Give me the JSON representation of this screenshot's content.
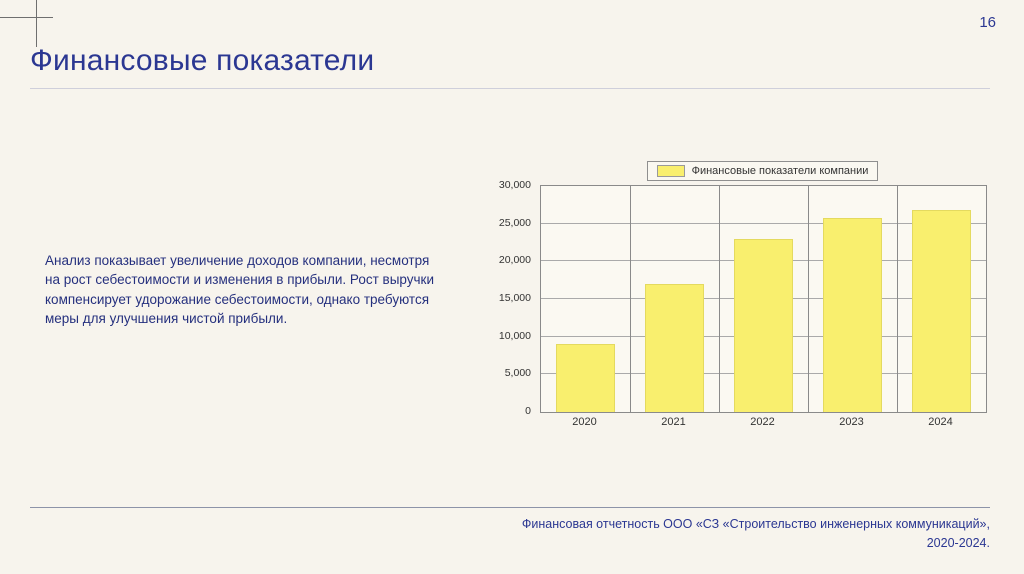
{
  "page_number": "16",
  "title": "Финансовые показатели",
  "body_text": "Анализ показывает увеличение доходов компании, несмотря на рост себестоимости и изменения в прибыли. Рост выручки компенсирует удорожание себестоимости, однако требуются меры для улучшения чистой прибыли.",
  "footer": {
    "line1": "Финансовая отчетность ООО «СЗ «Строительство инженерных коммуникаций»,",
    "line2": "2020-2024."
  },
  "colors": {
    "accent_blue": "#2b3792",
    "bar_yellow": "#f9ef6e",
    "grid": "#8a8a8a"
  },
  "chart_data": {
    "type": "bar",
    "title": "",
    "legend": "Финансовые показатели компании",
    "legend_position": "top",
    "categories": [
      "2020",
      "2021",
      "2022",
      "2023",
      "2024"
    ],
    "values": [
      9000,
      17000,
      23000,
      25800,
      26800
    ],
    "xlabel": "",
    "ylabel": "",
    "ylim": [
      0,
      30000
    ],
    "yticks": [
      "0",
      "5,000",
      "10,000",
      "15,000",
      "20,000",
      "25,000",
      "30,000"
    ],
    "grid": true,
    "bar_color": "#f9ef6e"
  }
}
